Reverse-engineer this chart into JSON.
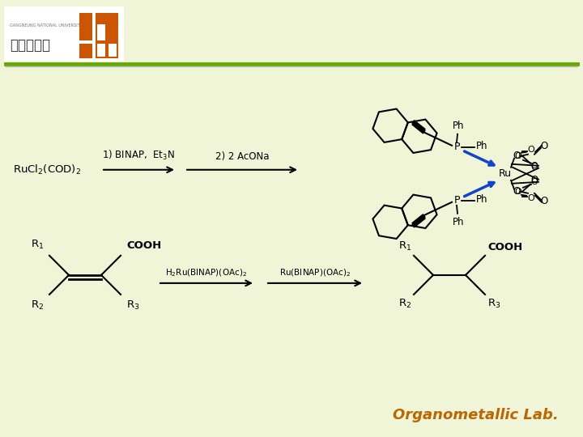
{
  "bg_body": "#f0f5d8",
  "bg_header": "#f0f5d8",
  "bg_logo_box": "#ffffff",
  "header_line_green": "#66aa00",
  "header_line_gray": "#bbbbbb",
  "logo_korean": "강르대학교",
  "logo_english": "GANGNEUNG NATIONAL UNIVERSITY",
  "logo_orange": "#cc5500",
  "title_text": "Organometallic Lab.",
  "title_color": "#bb6600",
  "title_fontsize": 13,
  "arrow_color": "#000000",
  "blue_arrow": "#1144cc",
  "text_color": "#000000",
  "r1_reactant": "RuCl$_2$(COD)$_2$",
  "r1_step1": "1) BINAP,  Et$_3$N",
  "r1_step2": "2) 2 AcONa",
  "r2_above": "H$_2$Ru(BINAP)(OAc)$_2$",
  "r2_below": "Ru(BINAP)(OAc)$_2$"
}
